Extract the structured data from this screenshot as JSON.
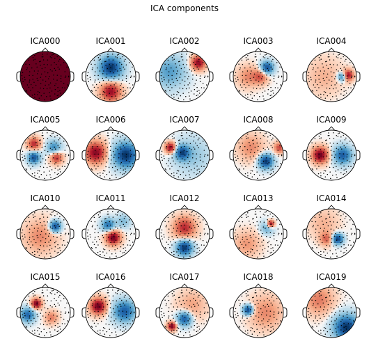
{
  "figure_title": "ICA components",
  "chart_data": {
    "type": "heatmap",
    "title": "ICA components",
    "layout": "4 rows x 5 columns of scalp topomaps",
    "colormap": "RdBu_r (red positive, blue negative)",
    "sensor_markers": "black dots",
    "components": [
      {
        "name": "ICA000",
        "pattern": "global positive",
        "sources": [
          {
            "x": 0,
            "y": 0,
            "w": 1.0,
            "s": 1.2
          }
        ],
        "bias": 0.5,
        "rim": 0.45
      },
      {
        "name": "ICA001",
        "pattern": "frontal negative, occipital positive",
        "sources": [
          {
            "x": 0,
            "y": 0.35,
            "w": -1.0,
            "s": 0.32
          },
          {
            "x": 0,
            "y": -0.6,
            "w": 0.85,
            "s": 0.28
          }
        ]
      },
      {
        "name": "ICA002",
        "pattern": "right frontal positive, left negative",
        "sources": [
          {
            "x": 0.55,
            "y": 0.55,
            "w": 0.9,
            "s": 0.2
          },
          {
            "x": -0.6,
            "y": 0.2,
            "w": -0.45,
            "s": 0.45
          }
        ]
      },
      {
        "name": "ICA003",
        "pattern": "right central negative, left positive",
        "sources": [
          {
            "x": 0.35,
            "y": 0.35,
            "w": -0.9,
            "s": 0.18
          },
          {
            "x": 0.1,
            "y": 0.0,
            "w": 0.5,
            "s": 0.2
          },
          {
            "x": -0.4,
            "y": 0.0,
            "w": 0.35,
            "s": 0.3
          }
        ]
      },
      {
        "name": "ICA004",
        "pattern": "right temporal dipole",
        "sources": [
          {
            "x": 0.65,
            "y": 0.05,
            "w": 0.95,
            "s": 0.15
          },
          {
            "x": 0.45,
            "y": 0.0,
            "w": -0.8,
            "s": 0.13
          },
          {
            "x": -0.3,
            "y": 0.0,
            "w": 0.2,
            "s": 0.5
          }
        ]
      },
      {
        "name": "ICA005",
        "pattern": "bilateral central dipoles",
        "sources": [
          {
            "x": -0.45,
            "y": -0.1,
            "w": -0.85,
            "s": 0.17
          },
          {
            "x": 0.45,
            "y": -0.1,
            "w": 0.7,
            "s": 0.17
          },
          {
            "x": -0.45,
            "y": 0.45,
            "w": 0.7,
            "s": 0.18
          },
          {
            "x": 0.35,
            "y": 0.3,
            "w": -0.55,
            "s": 0.2
          }
        ]
      },
      {
        "name": "ICA006",
        "pattern": "left positive, right negative",
        "sources": [
          {
            "x": -0.6,
            "y": 0.1,
            "w": 0.9,
            "s": 0.3
          },
          {
            "x": 0.6,
            "y": 0.0,
            "w": -1.0,
            "s": 0.35
          }
        ]
      },
      {
        "name": "ICA007",
        "pattern": "left frontal dipole",
        "sources": [
          {
            "x": -0.55,
            "y": 0.3,
            "w": 0.95,
            "s": 0.15
          },
          {
            "x": -0.1,
            "y": 0.1,
            "w": -0.8,
            "s": 0.2
          },
          {
            "x": 0.3,
            "y": 0.0,
            "w": -0.25,
            "s": 0.5
          }
        ]
      },
      {
        "name": "ICA008",
        "pattern": "right posterior negative",
        "sources": [
          {
            "x": 0.3,
            "y": -0.25,
            "w": -1.0,
            "s": 0.2
          },
          {
            "x": -0.3,
            "y": 0.3,
            "w": 0.35,
            "s": 0.35
          },
          {
            "x": 0.85,
            "y": 0.3,
            "w": 0.6,
            "s": 0.15
          }
        ]
      },
      {
        "name": "ICA009",
        "pattern": "left positive, right negative centro-temporal",
        "sources": [
          {
            "x": -0.45,
            "y": 0.0,
            "w": 1.0,
            "s": 0.22
          },
          {
            "x": 0.45,
            "y": 0.0,
            "w": -0.8,
            "s": 0.25
          }
        ]
      },
      {
        "name": "ICA010",
        "pattern": "right frontal negative",
        "sources": [
          {
            "x": 0.4,
            "y": 0.3,
            "w": -0.95,
            "s": 0.16
          },
          {
            "x": -0.2,
            "y": -0.1,
            "w": 0.35,
            "s": 0.45
          }
        ]
      },
      {
        "name": "ICA011",
        "pattern": "central positive, frontal negative",
        "sources": [
          {
            "x": 0.1,
            "y": -0.15,
            "w": 1.0,
            "s": 0.2
          },
          {
            "x": -0.1,
            "y": 0.35,
            "w": -0.7,
            "s": 0.18
          },
          {
            "x": 0.5,
            "y": 0.5,
            "w": -0.3,
            "s": 0.2
          }
        ]
      },
      {
        "name": "ICA012",
        "pattern": "frontal positive band, occipital negative",
        "sources": [
          {
            "x": 0,
            "y": 0.25,
            "w": 0.7,
            "s": 0.3
          },
          {
            "x": 0,
            "y": -0.55,
            "w": -1.0,
            "s": 0.22
          }
        ]
      },
      {
        "name": "ICA013",
        "pattern": "right frontal positive focal",
        "sources": [
          {
            "x": 0.5,
            "y": 0.4,
            "w": 1.0,
            "s": 0.1
          },
          {
            "x": 0.35,
            "y": 0.25,
            "w": -0.4,
            "s": 0.18
          },
          {
            "x": -0.45,
            "y": -0.4,
            "w": 0.3,
            "s": 0.35
          }
        ]
      },
      {
        "name": "ICA014",
        "pattern": "right posterior negative focal",
        "sources": [
          {
            "x": 0.25,
            "y": -0.2,
            "w": -1.0,
            "s": 0.15
          },
          {
            "x": -0.2,
            "y": -0.2,
            "w": 0.45,
            "s": 0.18
          },
          {
            "x": -0.3,
            "y": 0.4,
            "w": 0.2,
            "s": 0.4
          }
        ]
      },
      {
        "name": "ICA015",
        "pattern": "left frontal positive, left temporal negative",
        "sources": [
          {
            "x": -0.35,
            "y": 0.35,
            "w": 1.0,
            "s": 0.14
          },
          {
            "x": -0.7,
            "y": -0.1,
            "w": -0.75,
            "s": 0.2
          },
          {
            "x": 0.25,
            "y": -0.2,
            "w": 0.4,
            "s": 0.18
          }
        ]
      },
      {
        "name": "ICA016",
        "pattern": "left positive, right negative",
        "sources": [
          {
            "x": -0.5,
            "y": 0.25,
            "w": 1.0,
            "s": 0.22
          },
          {
            "x": 0.55,
            "y": 0.05,
            "w": -0.8,
            "s": 0.3
          }
        ]
      },
      {
        "name": "ICA017",
        "pattern": "left occipital positive, central negative",
        "sources": [
          {
            "x": -0.5,
            "y": -0.55,
            "w": 1.0,
            "s": 0.12
          },
          {
            "x": 0.0,
            "y": -0.25,
            "w": -0.85,
            "s": 0.2
          },
          {
            "x": 0.3,
            "y": 0.3,
            "w": 0.25,
            "s": 0.4
          }
        ]
      },
      {
        "name": "ICA018",
        "pattern": "left temporal negative",
        "sources": [
          {
            "x": -0.4,
            "y": 0.1,
            "w": -1.0,
            "s": 0.14
          },
          {
            "x": 0.3,
            "y": 0.0,
            "w": 0.35,
            "s": 0.45
          }
        ]
      },
      {
        "name": "ICA019",
        "pattern": "right posterior negative, frontal positive",
        "sources": [
          {
            "x": 0.6,
            "y": -0.6,
            "w": -1.0,
            "s": 0.35
          },
          {
            "x": -0.5,
            "y": 0.5,
            "w": 0.4,
            "s": 0.4
          }
        ]
      }
    ]
  }
}
